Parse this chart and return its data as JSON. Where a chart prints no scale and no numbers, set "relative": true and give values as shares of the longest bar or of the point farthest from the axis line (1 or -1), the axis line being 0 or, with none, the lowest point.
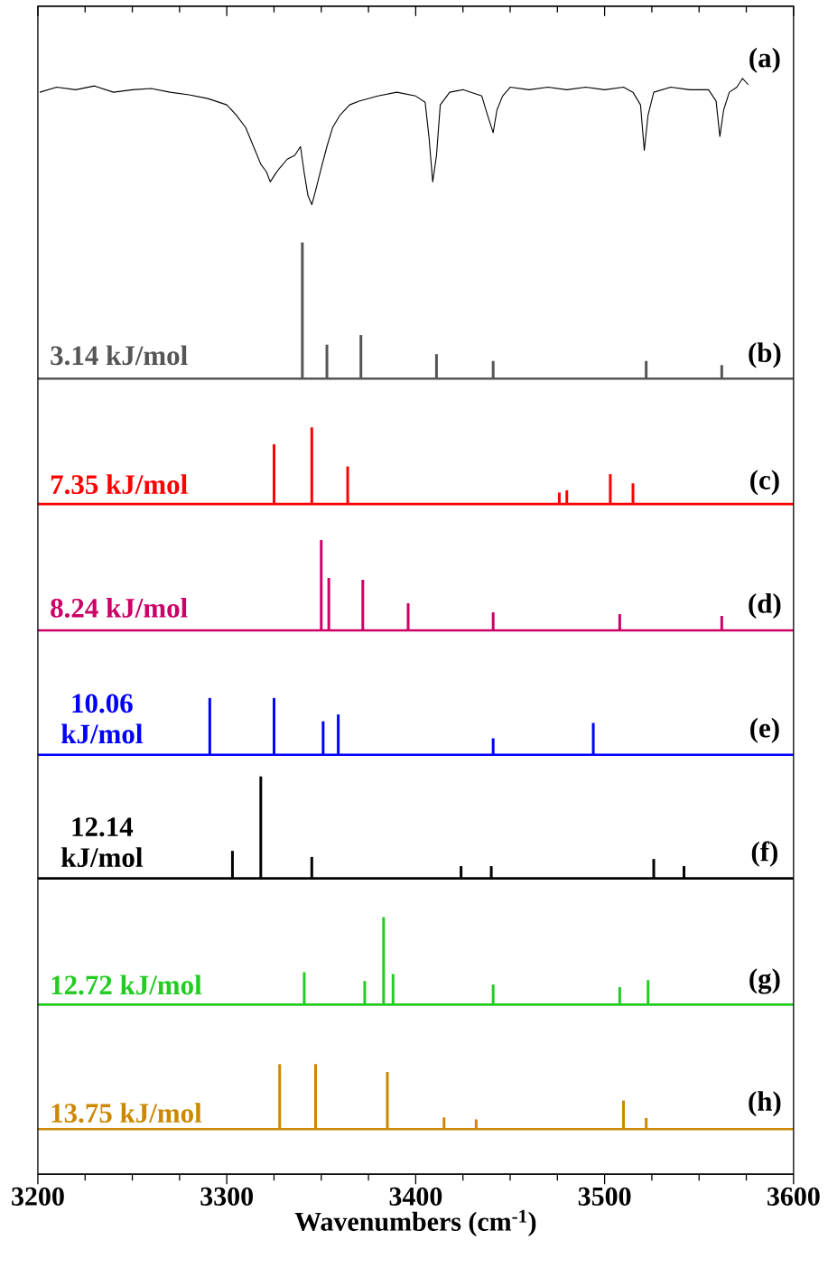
{
  "chart_data": [
    {
      "type": "line",
      "relative": true,
      "xlim": [
        3200,
        3600
      ],
      "tick_labels": false,
      "xticks": [
        3200,
        3300,
        3400,
        3500,
        3600
      ],
      "series": [
        {
          "color": "#000000",
          "x": [
            3201,
            3210,
            3220,
            3230,
            3240,
            3250,
            3260,
            3270,
            3280,
            3290,
            3300,
            3305,
            3310,
            3315,
            3318,
            3321,
            3323,
            3326,
            3328,
            3332,
            3336,
            3339,
            3341,
            3343,
            3345,
            3347,
            3350,
            3353,
            3356,
            3360,
            3365,
            3370,
            3380,
            3390,
            3400,
            3405,
            3407,
            3409,
            3411,
            3413,
            3418,
            3425,
            3435,
            3438,
            3441,
            3443,
            3446,
            3450,
            3460,
            3470,
            3480,
            3490,
            3500,
            3510,
            3515,
            3519,
            3521,
            3523,
            3526,
            3535,
            3545,
            3555,
            3559,
            3561,
            3563,
            3566,
            3570,
            3573,
            3576
          ],
          "values": [
            0.89,
            0.93,
            0.91,
            0.94,
            0.89,
            0.91,
            0.92,
            0.89,
            0.87,
            0.84,
            0.79,
            0.71,
            0.61,
            0.43,
            0.32,
            0.26,
            0.18,
            0.25,
            0.29,
            0.36,
            0.39,
            0.46,
            0.25,
            0.07,
            0,
            0.11,
            0.29,
            0.46,
            0.61,
            0.71,
            0.79,
            0.82,
            0.86,
            0.89,
            0.86,
            0.81,
            0.54,
            0.18,
            0.39,
            0.79,
            0.89,
            0.91,
            0.86,
            0.71,
            0.57,
            0.75,
            0.86,
            0.93,
            0.91,
            0.93,
            0.91,
            0.93,
            0.91,
            0.93,
            0.89,
            0.79,
            0.43,
            0.71,
            0.89,
            0.93,
            0.91,
            0.91,
            0.82,
            0.54,
            0.75,
            0.89,
            0.93,
            1.0,
            0.95
          ]
        }
      ],
      "annotations": [
        "(a)"
      ]
    },
    {
      "type": "bar",
      "relative": true,
      "xlim": [
        3200,
        3600
      ],
      "series": [
        {
          "color": "#555555",
          "x": [
            3340,
            3353,
            3371,
            3411,
            3441,
            3522,
            3562
          ],
          "values": [
            1.0,
            0.25,
            0.32,
            0.18,
            0.13,
            0.13,
            0.1
          ]
        }
      ],
      "annotations": [
        "3.14 kJ/mol",
        "(b)"
      ]
    },
    {
      "type": "bar",
      "relative": true,
      "xlim": [
        3200,
        3600
      ],
      "series": [
        {
          "color": "#ff0000",
          "x": [
            3325,
            3345,
            3364,
            3476,
            3480,
            3503,
            3515
          ],
          "values": [
            0.78,
            1.0,
            0.49,
            0.15,
            0.18,
            0.39,
            0.27
          ]
        }
      ],
      "annotations": [
        "7.35 kJ/mol",
        "(c)"
      ]
    },
    {
      "type": "bar",
      "relative": true,
      "xlim": [
        3200,
        3600
      ],
      "series": [
        {
          "color": "#cc0066",
          "x": [
            3350,
            3354,
            3372,
            3396,
            3441,
            3508,
            3562
          ],
          "values": [
            1.0,
            0.58,
            0.56,
            0.3,
            0.2,
            0.18,
            0.16
          ]
        }
      ],
      "annotations": [
        "8.24 kJ/mol",
        "(d)"
      ]
    },
    {
      "type": "bar",
      "relative": true,
      "xlim": [
        3200,
        3600
      ],
      "series": [
        {
          "color": "#0000ff",
          "x": [
            3291,
            3325,
            3351,
            3359,
            3441,
            3494
          ],
          "values": [
            1.0,
            1.0,
            0.59,
            0.71,
            0.29,
            0.56
          ]
        }
      ],
      "annotations": [
        "10.06 kJ/mol",
        "(e)"
      ]
    },
    {
      "type": "bar",
      "relative": true,
      "xlim": [
        3200,
        3600
      ],
      "series": [
        {
          "color": "#000000",
          "x": [
            3303,
            3318,
            3345,
            3424,
            3440,
            3526,
            3542
          ],
          "values": [
            0.27,
            1.0,
            0.21,
            0.12,
            0.12,
            0.19,
            0.12
          ]
        }
      ],
      "annotations": [
        "12.14 kJ/mol",
        "(f)"
      ]
    },
    {
      "type": "bar",
      "relative": true,
      "xlim": [
        3200,
        3600
      ],
      "series": [
        {
          "color": "#22cc22",
          "x": [
            3341,
            3373,
            3383,
            3388,
            3441,
            3508,
            3523
          ],
          "values": [
            0.37,
            0.27,
            1.0,
            0.35,
            0.23,
            0.2,
            0.28
          ]
        }
      ],
      "annotations": [
        "12.72 kJ/mol",
        "(g)"
      ]
    },
    {
      "type": "bar",
      "relative": true,
      "xlim": [
        3200,
        3600
      ],
      "xlabel": "Wavenumbers (cm$^{-1}$)",
      "xticks": [
        3200,
        3300,
        3400,
        3500,
        3600
      ],
      "series": [
        {
          "color": "#cc8800",
          "x": [
            3328,
            3347,
            3385,
            3415,
            3432,
            3510,
            3522
          ],
          "values": [
            1.0,
            1.0,
            0.88,
            0.18,
            0.15,
            0.44,
            0.17
          ]
        }
      ],
      "annotations": [
        "13.75 kJ/mol",
        "(h)"
      ]
    }
  ]
}
